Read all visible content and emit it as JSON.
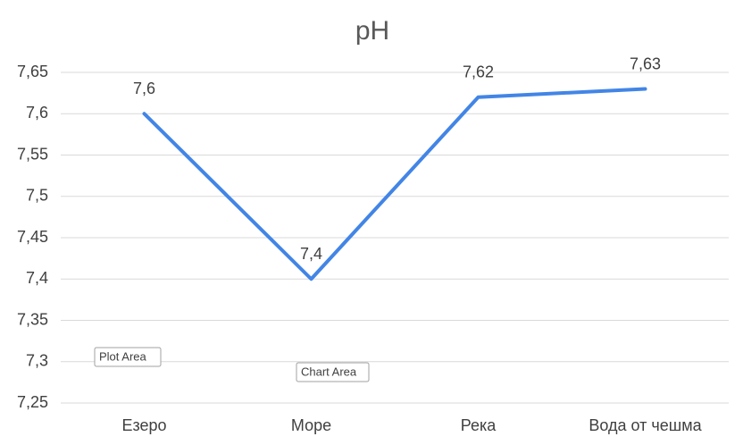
{
  "chart_data": {
    "type": "line",
    "title": "pH",
    "categories": [
      "Езеро",
      "Море",
      "Река",
      "Вода от чешма"
    ],
    "series": [
      {
        "color": "#4285e6",
        "values": [
          7.6,
          7.4,
          7.62,
          7.63
        ],
        "value_labels": [
          "7,6",
          "7,4",
          "7,62",
          "7,63"
        ]
      }
    ],
    "ylim": [
      7.25,
      7.65
    ],
    "yticks": [
      {
        "value": 7.25,
        "label": "7,25"
      },
      {
        "value": 7.3,
        "label": "7,3"
      },
      {
        "value": 7.35,
        "label": "7,35"
      },
      {
        "value": 7.4,
        "label": "7,4"
      },
      {
        "value": 7.45,
        "label": "7,45"
      },
      {
        "value": 7.5,
        "label": "7,5"
      },
      {
        "value": 7.55,
        "label": "7,55"
      },
      {
        "value": 7.6,
        "label": "7,6"
      },
      {
        "value": 7.65,
        "label": "7,65"
      }
    ],
    "grid": true,
    "annotations": [
      "Plot Area",
      "Chart Area"
    ]
  }
}
